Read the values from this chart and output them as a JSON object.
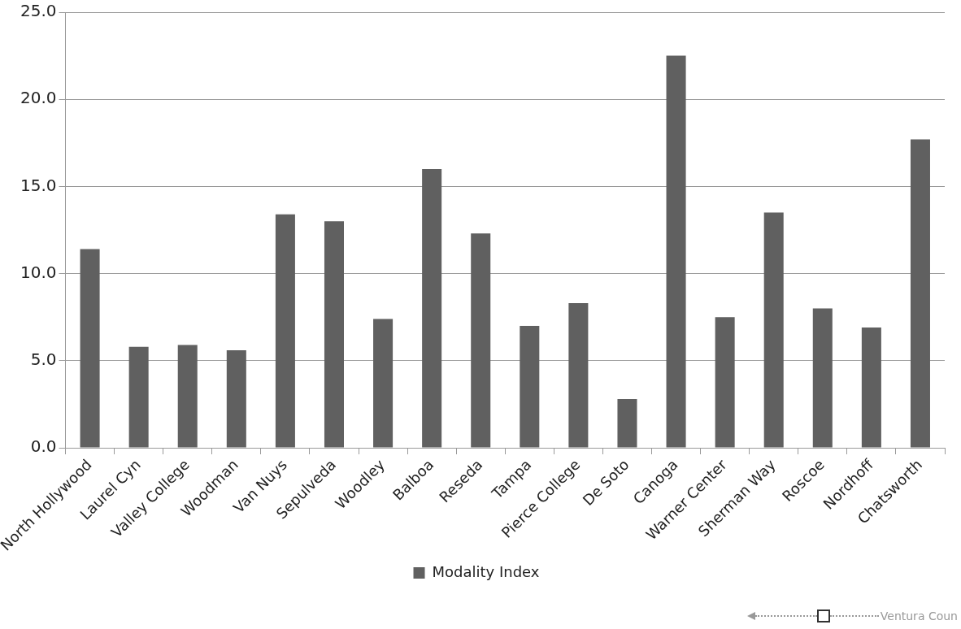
{
  "chart_data": {
    "type": "bar",
    "categories": [
      "North Hollywood",
      "Laurel Cyn",
      "Valley College",
      "Woodman",
      "Van Nuys",
      "Sepulveda",
      "Woodley",
      "Balboa",
      "Reseda",
      "Tampa",
      "Pierce College",
      "De Soto",
      "Canoga",
      "Warner Center",
      "Sherman Way",
      "Roscoe",
      "Nordhoff",
      "Chatsworth"
    ],
    "series": [
      {
        "name": "Modality Index",
        "color": "#606060",
        "values": [
          11.4,
          5.8,
          5.9,
          5.6,
          13.4,
          13.0,
          7.4,
          16.0,
          12.3,
          7.0,
          8.3,
          2.8,
          22.5,
          7.5,
          13.5,
          8.0,
          6.9,
          17.7
        ]
      }
    ],
    "ylim": [
      0,
      25
    ],
    "yticks": [
      {
        "value": 0,
        "label": "0.0"
      },
      {
        "value": 5,
        "label": "5.0"
      },
      {
        "value": 10,
        "label": "10.0"
      },
      {
        "value": 15,
        "label": "15.0"
      },
      {
        "value": 20,
        "label": "20.0"
      },
      {
        "value": 25,
        "label": "25.0"
      }
    ],
    "grid": "y",
    "legend": "bottom",
    "annotations": [
      "Ventura Coun"
    ]
  }
}
